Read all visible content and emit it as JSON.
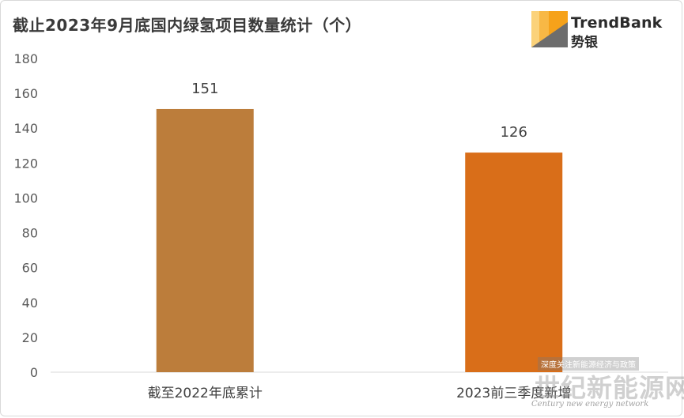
{
  "header": {
    "title": "截止2023年9月底国内绿氢项目数量统计（个）",
    "logo_en": "TrendBank",
    "logo_cn": "势银"
  },
  "watermark": {
    "tag": "深度关注新能源经济与政策",
    "cn": "世纪新能源网",
    "en": "Century new energy network"
  },
  "colors": {
    "bar1": "#bc7d3b",
    "bar2": "#d96e19",
    "gridline": "#d9d9d9",
    "logo_orange": "#f6a21a",
    "logo_gray": "#6d6d6d"
  },
  "chart_data": {
    "type": "bar",
    "title": "截止2023年9月底国内绿氢项目数量统计（个）",
    "categories": [
      "截至2022年底累计",
      "2023前三季度新增"
    ],
    "values": [
      151,
      126
    ],
    "data_labels": [
      "151",
      "126"
    ],
    "yticks": [
      "0",
      "20",
      "40",
      "60",
      "80",
      "100",
      "120",
      "140",
      "160",
      "180"
    ],
    "ylim": [
      0,
      180
    ],
    "xlabel": "",
    "ylabel": "",
    "grid": false,
    "legend": "none"
  }
}
